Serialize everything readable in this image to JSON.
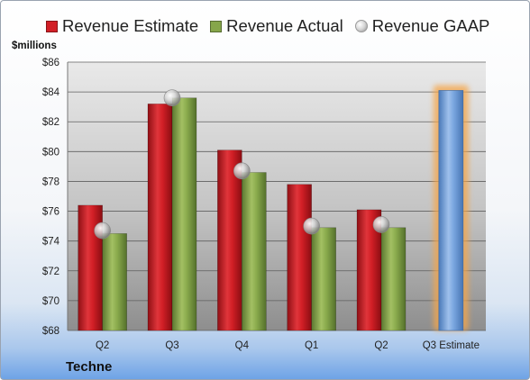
{
  "chart_data": {
    "type": "bar",
    "categories": [
      "Q2",
      "Q3",
      "Q4",
      "Q1",
      "Q2",
      "Q3 Estimate"
    ],
    "series": [
      {
        "name": "Revenue Estimate",
        "values": [
          76.4,
          83.2,
          80.1,
          77.8,
          76.1,
          null
        ],
        "color": "#d21f26"
      },
      {
        "name": "Revenue Actual",
        "values": [
          74.5,
          83.6,
          78.6,
          74.9,
          74.9,
          null
        ],
        "color": "#86a64a"
      },
      {
        "name": "Revenue GAAP",
        "values": [
          74.7,
          83.6,
          78.7,
          75.0,
          75.1,
          null
        ],
        "color": "#c8c8c8"
      }
    ],
    "estimate": {
      "category": "Q3 Estimate",
      "value": 84.1,
      "color": "#6f9fdc",
      "glow": "#f5a64a"
    },
    "yunit": "$millions",
    "yticks": [
      "$68",
      "$70",
      "$72",
      "$74",
      "$76",
      "$78",
      "$80",
      "$82",
      "$84",
      "$86"
    ],
    "ylim": [
      68,
      86
    ],
    "grid": true,
    "legend_position": "top",
    "footer_label": "Techne"
  }
}
